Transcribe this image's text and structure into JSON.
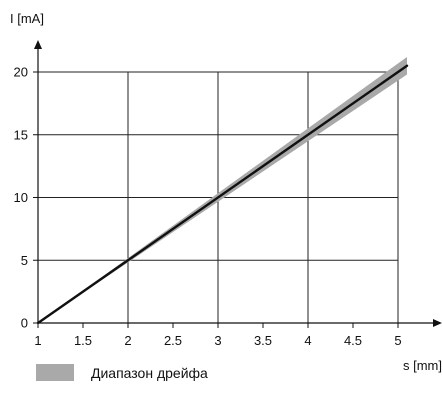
{
  "chart_data": {
    "type": "line",
    "title": "",
    "xlabel": "s [mm]",
    "ylabel": "I [mA]",
    "xlim": [
      1,
      5
    ],
    "ylim": [
      0,
      20
    ],
    "x_ticks": [
      "1",
      "1.5",
      "2",
      "2.5",
      "3",
      "3.5",
      "4",
      "4.5",
      "5"
    ],
    "y_ticks": [
      "0",
      "5",
      "10",
      "15",
      "20"
    ],
    "grid": true,
    "legend": {
      "placement": "bottom",
      "entries": [
        {
          "label": "Диапазон дрейфа",
          "color": "#a9a9a9"
        }
      ]
    },
    "series": [
      {
        "x": [
          1,
          5.1
        ],
        "y": [
          0,
          20.5
        ],
        "color": "#111111"
      }
    ],
    "bands": [
      {
        "x": [
          1,
          5.1
        ],
        "y_lower": [
          0,
          19.8
        ],
        "y_upper": [
          0,
          21.2
        ],
        "color": "#a9a9a9"
      }
    ]
  }
}
